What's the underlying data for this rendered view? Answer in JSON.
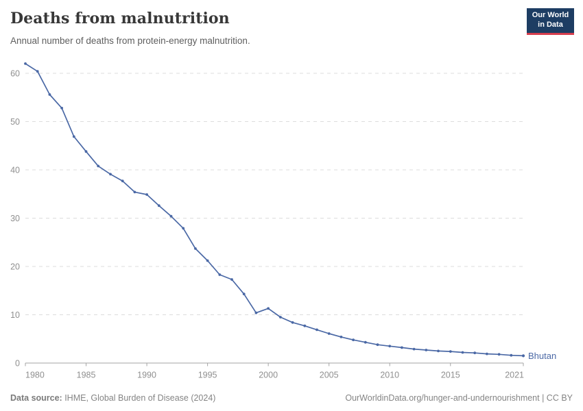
{
  "header": {
    "title": "Deaths from malnutrition",
    "subtitle": "Annual number of deaths from protein-energy malnutrition.",
    "logo": {
      "line1": "Our World",
      "line2": "in Data"
    }
  },
  "footer": {
    "source_label": "Data source:",
    "source_text": " IHME, Global Burden of Disease (2024)",
    "attribution": "OurWorldinData.org/hunger-and-undernourishment | CC BY"
  },
  "colors": {
    "line": "#4a68a5",
    "entity_label": "#4a68a5",
    "grid": "#dcdcdc",
    "axis": "#a3a3a3",
    "tick_label": "#8f8f8f",
    "logo_navy": "#1d3d63",
    "logo_red": "#d63e4e"
  },
  "chart_data": {
    "type": "line",
    "title": "Deaths from malnutrition",
    "subtitle": "Annual number of deaths from protein-energy malnutrition.",
    "entity": "Bhutan",
    "xlabel": "",
    "ylabel": "",
    "x": [
      1980,
      1981,
      1982,
      1983,
      1984,
      1985,
      1986,
      1987,
      1988,
      1989,
      1990,
      1991,
      1992,
      1993,
      1994,
      1995,
      1996,
      1997,
      1998,
      1999,
      2000,
      2001,
      2002,
      2003,
      2004,
      2005,
      2006,
      2007,
      2008,
      2009,
      2010,
      2011,
      2012,
      2013,
      2014,
      2015,
      2016,
      2017,
      2018,
      2019,
      2020,
      2021
    ],
    "series": [
      {
        "name": "Bhutan",
        "values": [
          62.0,
          60.4,
          55.6,
          52.8,
          46.9,
          43.8,
          40.8,
          39.1,
          37.7,
          35.4,
          34.9,
          32.6,
          30.4,
          27.9,
          23.7,
          21.2,
          18.3,
          17.3,
          14.3,
          10.4,
          11.3,
          9.5,
          8.4,
          7.7,
          6.9,
          6.1,
          5.4,
          4.8,
          4.3,
          3.8,
          3.5,
          3.2,
          2.9,
          2.7,
          2.5,
          2.4,
          2.2,
          2.1,
          1.9,
          1.8,
          1.6,
          1.5
        ]
      }
    ],
    "ylim": [
      0,
      62
    ],
    "yticks": [
      0,
      10,
      20,
      30,
      40,
      50,
      60
    ],
    "xticks": [
      1980,
      1985,
      1990,
      1995,
      2000,
      2005,
      2010,
      2015,
      2021
    ],
    "grid": "horizontal-dashed",
    "legend_position": "end-of-line-label",
    "markers": true
  }
}
